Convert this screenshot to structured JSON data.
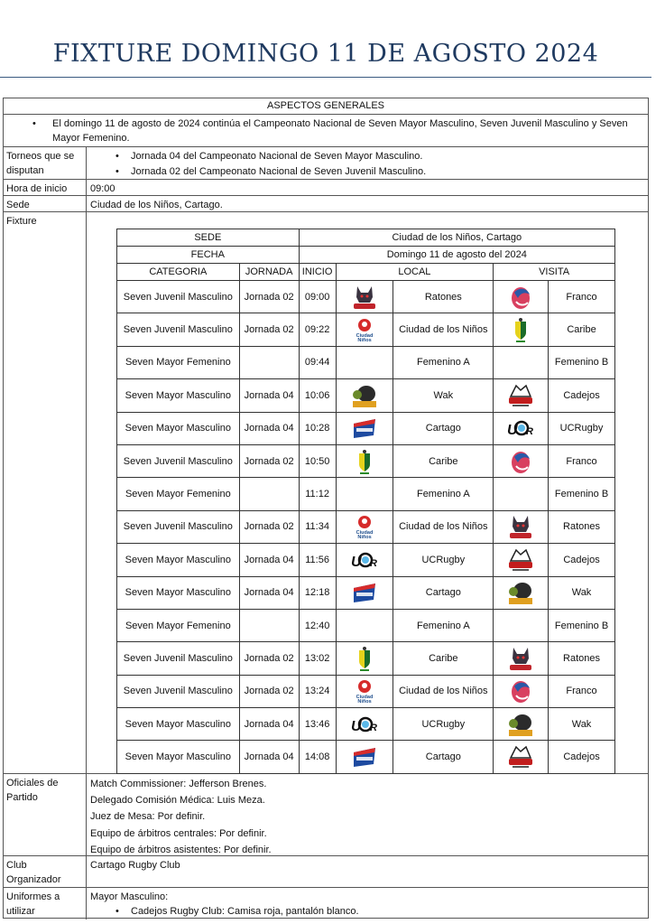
{
  "title": "FIXTURE DOMINGO 11 DE AGOSTO 2024",
  "general": {
    "header": "ASPECTOS GENERALES",
    "intro": "El domingo 11 de agosto de 2024 continúa el Campeonato Nacional de Seven Mayor Masculino, Seven Juvenil Masculino y Seven Mayor Femenino.",
    "torneos_label": "Torneos que se disputan",
    "torneos": [
      "Jornada 04 del Campeonato Nacional de Seven Mayor Masculino.",
      "Jornada 02 del Campeonato Nacional de Seven Juvenil Masculino."
    ],
    "hora_label": "Hora de inicio",
    "hora": "09:00",
    "sede_label": "Sede",
    "sede": "Ciudad de los Niños, Cartago.",
    "fixture_label": "Fixture",
    "oficiales_label": "Oficiales de Partido",
    "oficiales": [
      "Match Commissioner: Jefferson Brenes.",
      "Delegado Comisión Médica: Luis Meza.",
      "Juez de Mesa: Por definir.",
      "Equipo de árbitros centrales: Por definir.",
      "Equipo de árbitros asistentes: Por definir."
    ],
    "club_label": "Club Organizador",
    "club": "Cartago Rugby Club",
    "uniformes_label": "Uniformes a utilizar",
    "uniformes_heading": "Mayor Masculino:",
    "uniformes": [
      "Cadejos Rugby Club: Camisa roja, pantalón blanco."
    ]
  },
  "fixture": {
    "sede_label": "SEDE",
    "sede": "Ciudad de los Niños, Cartago",
    "fecha_label": "FECHA",
    "fecha": "Domingo 11 de agosto del 2024",
    "headers": [
      "CATEGORIA",
      "JORNADA",
      "INICIO",
      "LOCAL",
      "VISITA"
    ],
    "matches": [
      {
        "cat": "Seven Juvenil Masculino",
        "jor": "Jornada 02",
        "ini": "09:00",
        "local": "Ratones",
        "local_logo": "ratones",
        "visita": "Franco",
        "visita_logo": "franco"
      },
      {
        "cat": "Seven Juvenil Masculino",
        "jor": "Jornada 02",
        "ini": "09:22",
        "local": "Ciudad de los Niños",
        "local_logo": "ciudad",
        "visita": "Caribe",
        "visita_logo": "caribe"
      },
      {
        "cat": "Seven Mayor Femenino",
        "jor": "",
        "ini": "09:44",
        "local": "Femenino A",
        "local_logo": "",
        "visita": "Femenino B",
        "visita_logo": ""
      },
      {
        "cat": "Seven Mayor Masculino",
        "jor": "Jornada 04",
        "ini": "10:06",
        "local": "Wak",
        "local_logo": "wak",
        "visita": "Cadejos",
        "visita_logo": "cadejos"
      },
      {
        "cat": "Seven Mayor Masculino",
        "jor": "Jornada 04",
        "ini": "10:28",
        "local": "Cartago",
        "local_logo": "cartago",
        "visita": "UCRugby",
        "visita_logo": "ucr"
      },
      {
        "cat": "Seven Juvenil Masculino",
        "jor": "Jornada 02",
        "ini": "10:50",
        "local": "Caribe",
        "local_logo": "caribe",
        "visita": "Franco",
        "visita_logo": "franco"
      },
      {
        "cat": "Seven Mayor Femenino",
        "jor": "",
        "ini": "11:12",
        "local": "Femenino A",
        "local_logo": "",
        "visita": "Femenino B",
        "visita_logo": ""
      },
      {
        "cat": "Seven Juvenil Masculino",
        "jor": "Jornada 02",
        "ini": "11:34",
        "local": "Ciudad de los Niños",
        "local_logo": "ciudad",
        "visita": "Ratones",
        "visita_logo": "ratones"
      },
      {
        "cat": "Seven Mayor Masculino",
        "jor": "Jornada 04",
        "ini": "11:56",
        "local": "UCRugby",
        "local_logo": "ucr",
        "visita": "Cadejos",
        "visita_logo": "cadejos"
      },
      {
        "cat": "Seven Mayor Masculino",
        "jor": "Jornada 04",
        "ini": "12:18",
        "local": "Cartago",
        "local_logo": "cartago",
        "visita": "Wak",
        "visita_logo": "wak"
      },
      {
        "cat": "Seven Mayor Femenino",
        "jor": "",
        "ini": "12:40",
        "local": "Femenino A",
        "local_logo": "",
        "visita": "Femenino B",
        "visita_logo": ""
      },
      {
        "cat": "Seven Juvenil Masculino",
        "jor": "Jornada 02",
        "ini": "13:02",
        "local": "Caribe",
        "local_logo": "caribe",
        "visita": "Ratones",
        "visita_logo": "ratones"
      },
      {
        "cat": "Seven Juvenil Masculino",
        "jor": "Jornada 02",
        "ini": "13:24",
        "local": "Ciudad de los Niños",
        "local_logo": "ciudad",
        "visita": "Franco",
        "visita_logo": "franco"
      },
      {
        "cat": "Seven Mayor Masculino",
        "jor": "Jornada 04",
        "ini": "13:46",
        "local": "UCRugby",
        "local_logo": "ucr",
        "visita": "Wak",
        "visita_logo": "wak"
      },
      {
        "cat": "Seven Mayor Masculino",
        "jor": "Jornada 04",
        "ini": "14:08",
        "local": "Cartago",
        "local_logo": "cartago",
        "visita": "Cadejos",
        "visita_logo": "cadejos"
      }
    ]
  },
  "colors": {
    "title": "#1f3a60"
  }
}
